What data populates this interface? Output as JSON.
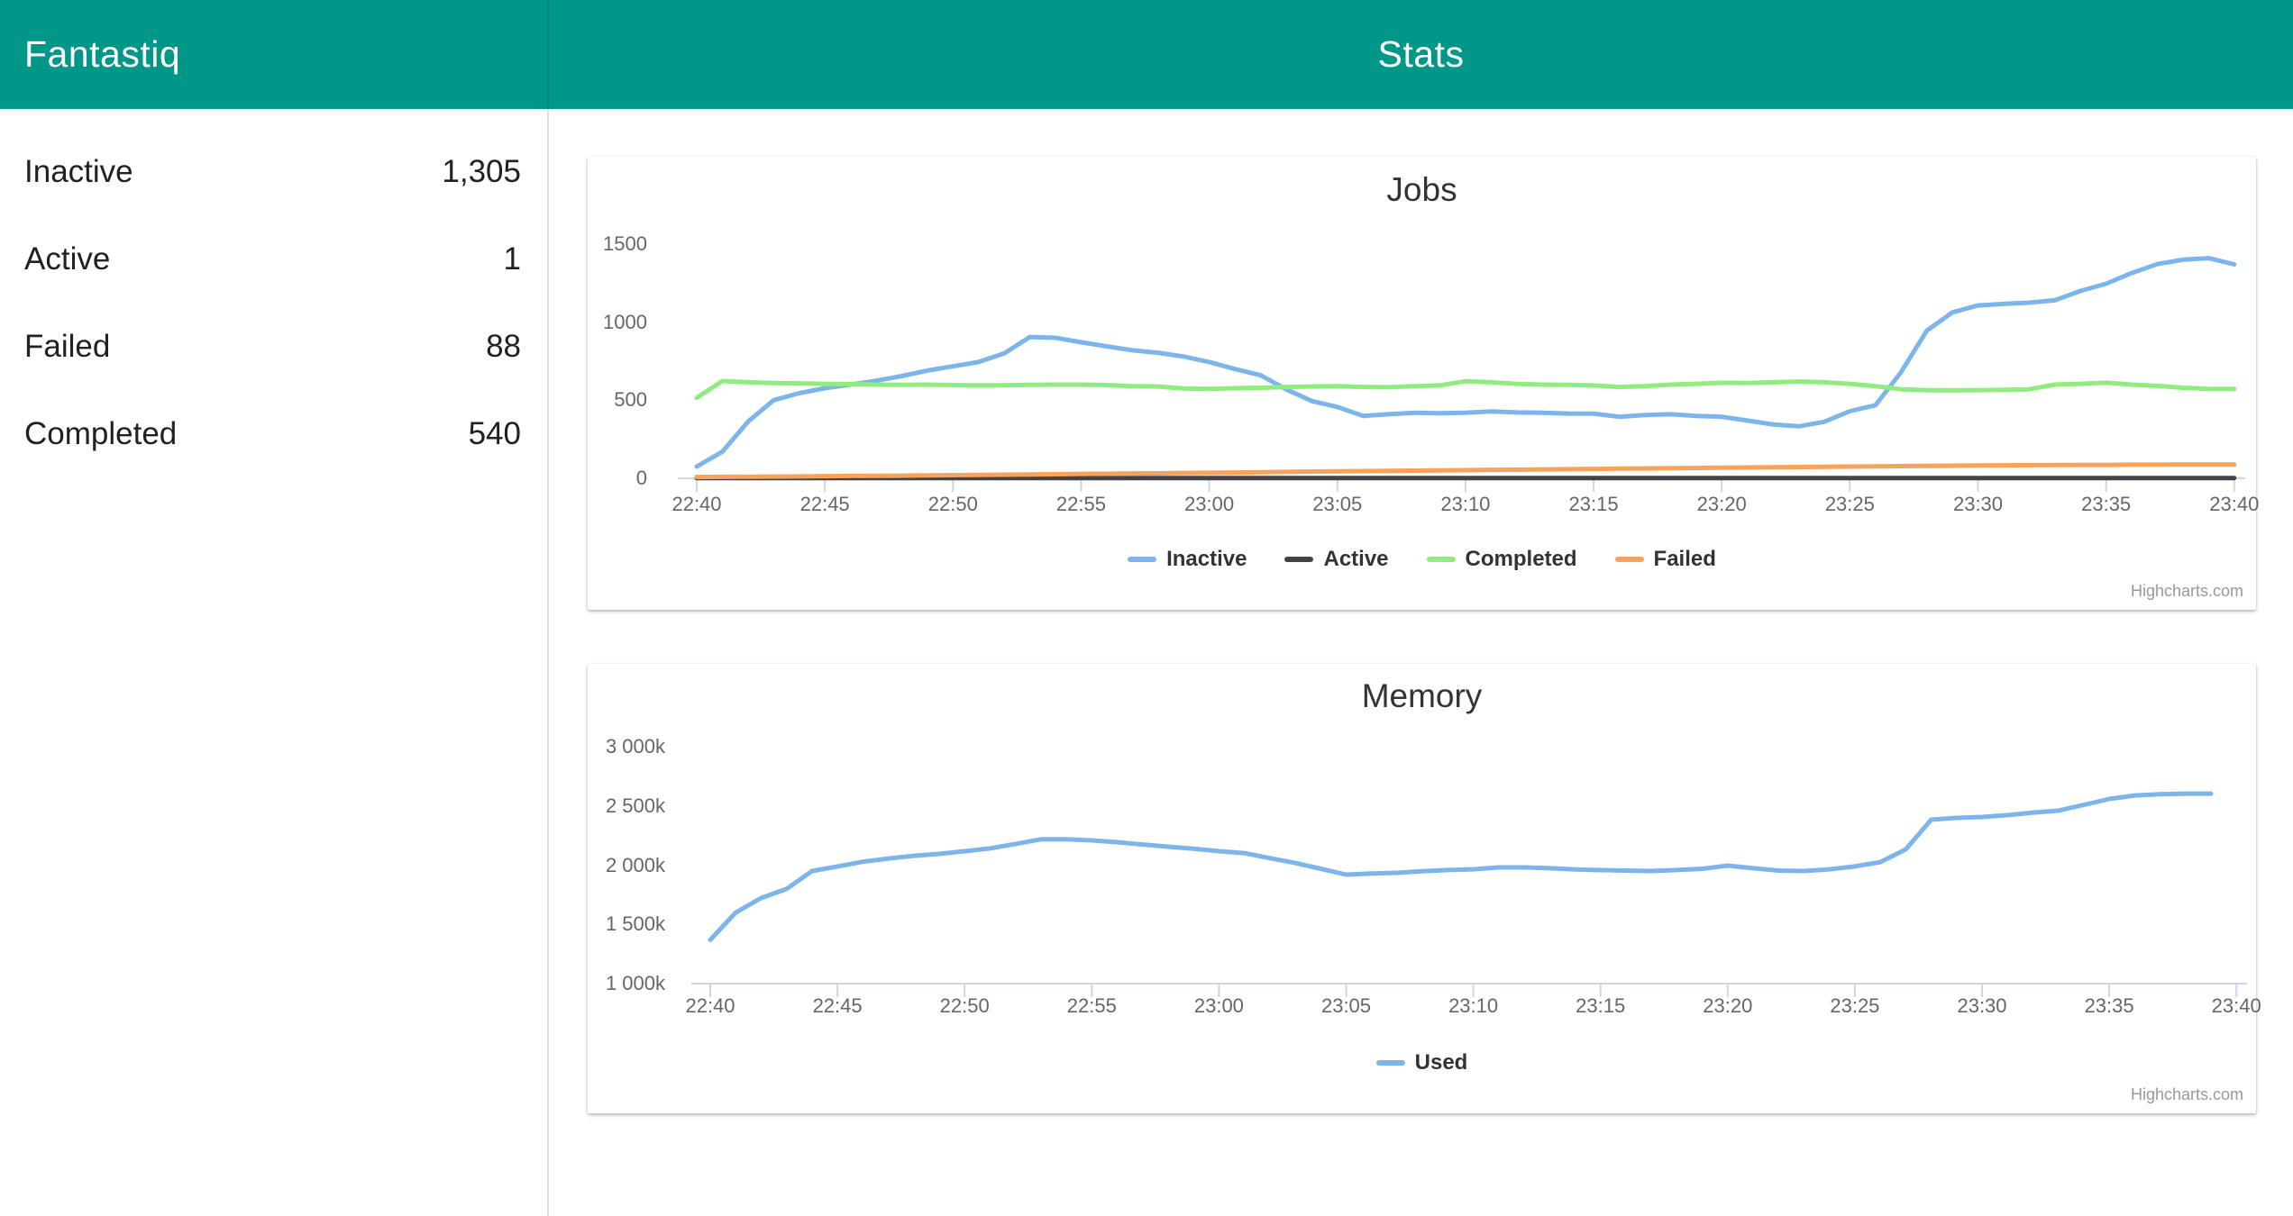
{
  "header": {
    "app_title": "Fantastiq",
    "page_title": "Stats"
  },
  "sidebar": {
    "items": [
      {
        "label": "Inactive",
        "value": "1,305"
      },
      {
        "label": "Active",
        "value": "1"
      },
      {
        "label": "Failed",
        "value": "88"
      },
      {
        "label": "Completed",
        "value": "540"
      }
    ]
  },
  "credit": "Highcharts.com",
  "colors": {
    "header_bg": "#009688",
    "axis": "#ccd6eb",
    "inactive": "#7cb5ec",
    "active": "#434348",
    "completed": "#90ed7d",
    "failed": "#f7a35c",
    "used": "#7cb5ec"
  },
  "chart_data": [
    {
      "type": "line",
      "title": "Jobs",
      "xlabel": "",
      "ylabel": "",
      "x_tick_labels": [
        "22:40",
        "22:45",
        "22:50",
        "22:55",
        "23:00",
        "23:05",
        "23:10",
        "23:15",
        "23:20",
        "23:25",
        "23:30",
        "23:35",
        "23:40"
      ],
      "x_minutes_range": [
        0,
        60
      ],
      "ylim": [
        0,
        1500
      ],
      "y_ticks": [
        {
          "value": 0,
          "label": "0"
        },
        {
          "value": 500,
          "label": "500"
        },
        {
          "value": 1000,
          "label": "1000"
        },
        {
          "value": 1500,
          "label": "1500"
        }
      ],
      "grid": false,
      "legend_position": "bottom",
      "series": [
        {
          "name": "Inactive",
          "color_key": "inactive",
          "values": [
            75,
            170,
            363,
            500,
            545,
            577,
            600,
            625,
            655,
            690,
            717,
            745,
            800,
            905,
            900,
            871,
            845,
            820,
            804,
            780,
            745,
            700,
            660,
            570,
            495,
            457,
            400,
            410,
            420,
            417,
            420,
            428,
            422,
            420,
            415,
            414,
            394,
            405,
            410,
            400,
            394,
            370,
            345,
            333,
            362,
            430,
            468,
            680,
            945,
            1063,
            1107,
            1117,
            1125,
            1140,
            1200,
            1246,
            1315,
            1372,
            1400,
            1410,
            1370
          ]
        },
        {
          "name": "Active",
          "color_key": "active",
          "values": [
            2,
            2,
            2,
            2,
            2,
            2,
            2,
            2,
            2,
            2,
            2,
            2,
            2,
            2,
            2,
            2,
            2,
            2,
            2,
            2,
            2,
            2,
            2,
            2,
            2,
            2,
            2,
            2,
            2,
            2,
            2,
            2,
            2,
            2,
            2,
            2,
            2,
            2,
            2,
            2,
            2,
            2,
            2,
            2,
            2,
            2,
            2,
            2,
            2,
            2,
            2,
            2,
            2,
            2,
            2,
            2,
            2,
            2,
            2,
            2,
            2
          ]
        },
        {
          "name": "Completed",
          "color_key": "completed",
          "values": [
            515,
            623,
            615,
            610,
            608,
            605,
            603,
            600,
            598,
            600,
            597,
            595,
            596,
            598,
            600,
            600,
            597,
            590,
            588,
            575,
            573,
            577,
            580,
            585,
            588,
            590,
            585,
            583,
            590,
            595,
            622,
            615,
            605,
            600,
            598,
            595,
            585,
            590,
            600,
            605,
            612,
            610,
            615,
            620,
            615,
            605,
            590,
            570,
            565,
            563,
            565,
            567,
            570,
            600,
            605,
            612,
            600,
            592,
            580,
            573,
            573
          ]
        },
        {
          "name": "Failed",
          "color_key": "failed",
          "values": [
            8,
            9,
            10,
            11,
            12,
            14,
            15,
            16,
            17,
            19,
            20,
            22,
            23,
            25,
            26,
            28,
            29,
            31,
            32,
            34,
            35,
            37,
            39,
            41,
            43,
            45,
            46,
            48,
            49,
            51,
            52,
            54,
            55,
            57,
            58,
            60,
            62,
            63,
            65,
            66,
            68,
            69,
            71,
            72,
            74,
            75,
            77,
            78,
            79,
            81,
            82,
            83,
            84,
            85,
            86,
            86,
            87,
            87,
            88,
            88,
            88
          ]
        }
      ],
      "credit": "Highcharts.com"
    },
    {
      "type": "line",
      "title": "Memory",
      "xlabel": "",
      "ylabel": "",
      "x_tick_labels": [
        "22:40",
        "22:45",
        "22:50",
        "22:55",
        "23:00",
        "23:05",
        "23:10",
        "23:15",
        "23:20",
        "23:25",
        "23:30",
        "23:35",
        "23:40"
      ],
      "x_minutes_range": [
        0,
        60
      ],
      "ylim": [
        1000,
        3000
      ],
      "y_unit": "k",
      "y_ticks": [
        {
          "value": 1000,
          "label": "1 000k"
        },
        {
          "value": 1500,
          "label": "1 500k"
        },
        {
          "value": 2000,
          "label": "2 000k"
        },
        {
          "value": 2500,
          "label": "2 500k"
        },
        {
          "value": 3000,
          "label": "3 000k"
        }
      ],
      "grid": false,
      "legend_position": "bottom",
      "series": [
        {
          "name": "Used",
          "color_key": "used",
          "values": [
            1370,
            1600,
            1723,
            1800,
            1951,
            1989,
            2030,
            2057,
            2080,
            2096,
            2119,
            2142,
            2180,
            2219,
            2219,
            2210,
            2195,
            2175,
            2157,
            2140,
            2119,
            2103,
            2060,
            2019,
            1970,
            1921,
            1930,
            1936,
            1950,
            1960,
            1966,
            1982,
            1982,
            1975,
            1965,
            1959,
            1955,
            1951,
            1960,
            1970,
            1997,
            1975,
            1955,
            1951,
            1966,
            1990,
            2027,
            2134,
            2385,
            2400,
            2408,
            2423,
            2445,
            2461,
            2510,
            2560,
            2590,
            2600,
            2605,
            2605
          ]
        }
      ],
      "credit": "Highcharts.com"
    }
  ]
}
